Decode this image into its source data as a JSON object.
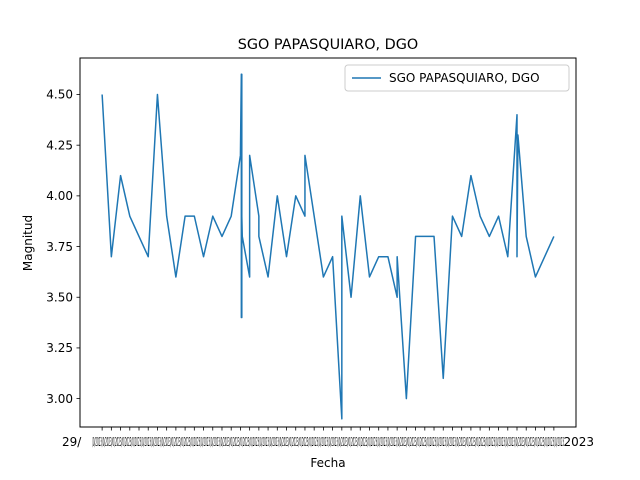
{
  "chart_data": {
    "type": "line",
    "title": "SGO PAPASQUIARO, DGO",
    "xlabel": "Fecha",
    "ylabel": "Magnitud",
    "ylim": [
      2.86,
      4.68
    ],
    "yticks": [
      "3.00",
      "3.25",
      "3.50",
      "3.75",
      "4.00",
      "4.25",
      "4.50"
    ],
    "ytick_values": [
      3.0,
      3.25,
      3.5,
      3.75,
      4.0,
      4.25,
      4.5
    ],
    "x_tick_count": 50,
    "x_first_label": "29/",
    "x_last_label": "2023",
    "grid": false,
    "legend": "top-right",
    "color": "#1f77b4",
    "series": [
      {
        "name": "SGO PAPASQUIARO, DGO",
        "values": [
          4.5,
          3.7,
          4.1,
          3.9,
          3.7,
          4.5,
          3.9,
          3.6,
          3.9,
          3.9,
          3.7,
          3.9,
          3.8,
          3.9,
          4.2,
          4.6,
          3.4,
          4.6,
          3.4,
          3.9,
          3.8,
          3.6,
          4.2,
          3.9,
          3.8,
          3.6,
          4.0,
          3.7,
          4.0,
          3.9,
          4.2,
          3.9,
          3.6,
          3.7,
          2.9,
          3.9,
          3.5,
          4.0,
          3.6,
          3.7,
          3.7,
          3.5,
          3.7,
          3.0,
          3.8,
          3.8,
          3.8,
          3.1,
          3.9,
          3.8,
          4.1,
          3.9,
          3.8,
          3.9,
          3.7,
          4.4,
          3.7,
          4.3,
          3.8,
          3.6,
          3.8
        ],
        "x": [
          0,
          1,
          2,
          3,
          5,
          6,
          7,
          8,
          9,
          10,
          11,
          12,
          13,
          14,
          15,
          15.1,
          15.1,
          15.15,
          15.15,
          15.15,
          15.2,
          16,
          16,
          17,
          17,
          18,
          19,
          20,
          21,
          22,
          22,
          23,
          24,
          25,
          26,
          26,
          27,
          28,
          29,
          30,
          31,
          32,
          32,
          33,
          34,
          35,
          36,
          37,
          38,
          39,
          40,
          41,
          42,
          43,
          44,
          45,
          45,
          45.1,
          46,
          47,
          49
        ]
      }
    ]
  }
}
